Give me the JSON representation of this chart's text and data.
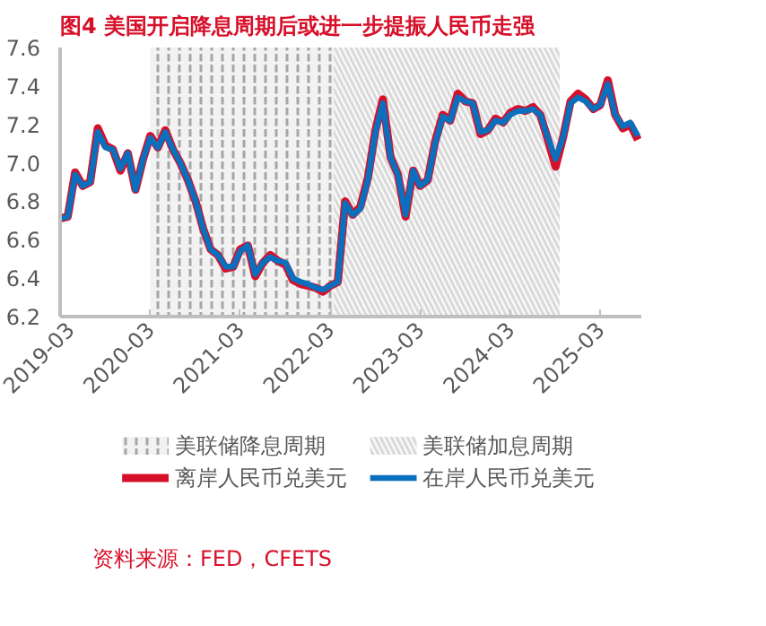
{
  "chart_data": {
    "type": "line",
    "title": "图4  美国开启降息周期后或进一步提振人民币走强",
    "x": [
      "2019-03",
      "2019-04",
      "2019-05",
      "2019-06",
      "2019-07",
      "2019-08",
      "2019-09",
      "2019-10",
      "2019-11",
      "2019-12",
      "2020-01",
      "2020-02",
      "2020-03",
      "2020-04",
      "2020-05",
      "2020-06",
      "2020-07",
      "2020-08",
      "2020-09",
      "2020-10",
      "2020-11",
      "2020-12",
      "2021-01",
      "2021-02",
      "2021-03",
      "2021-04",
      "2021-05",
      "2021-06",
      "2021-07",
      "2021-08",
      "2021-09",
      "2021-10",
      "2021-11",
      "2021-12",
      "2022-01",
      "2022-02",
      "2022-03",
      "2022-04",
      "2022-05",
      "2022-06",
      "2022-07",
      "2022-08",
      "2022-09",
      "2022-10",
      "2022-11",
      "2022-12",
      "2023-01",
      "2023-02",
      "2023-03",
      "2023-04",
      "2023-05",
      "2023-06",
      "2023-07",
      "2023-08",
      "2023-09",
      "2023-10",
      "2023-11",
      "2023-12",
      "2024-01",
      "2024-02",
      "2024-03",
      "2024-04",
      "2024-05",
      "2024-06",
      "2024-07",
      "2024-08",
      "2024-09",
      "2024-10",
      "2024-11",
      "2024-12",
      "2025-01",
      "2025-02",
      "2025-03",
      "2025-04",
      "2025-05",
      "2025-06",
      "2025-07",
      "2025-08"
    ],
    "series": [
      {
        "name": "离岸人民币兑美元",
        "color": "#d7102a",
        "values": [
          6.71,
          6.72,
          6.95,
          6.88,
          6.9,
          7.18,
          7.09,
          7.07,
          6.96,
          7.05,
          6.86,
          7.02,
          7.14,
          7.08,
          7.17,
          7.07,
          7.0,
          6.91,
          6.8,
          6.66,
          6.55,
          6.52,
          6.45,
          6.46,
          6.55,
          6.57,
          6.41,
          6.48,
          6.52,
          6.49,
          6.47,
          6.39,
          6.37,
          6.36,
          6.35,
          6.33,
          6.36,
          6.38,
          6.8,
          6.73,
          6.77,
          6.92,
          7.17,
          7.33,
          7.03,
          6.94,
          6.72,
          6.96,
          6.88,
          6.91,
          7.11,
          7.25,
          7.22,
          7.36,
          7.32,
          7.31,
          7.15,
          7.17,
          7.23,
          7.21,
          7.26,
          7.28,
          7.27,
          7.29,
          7.25,
          7.12,
          6.98,
          7.13,
          7.32,
          7.36,
          7.33,
          7.28,
          7.3,
          7.43,
          7.25,
          7.18,
          7.2,
          7.12
        ]
      },
      {
        "name": "在岸人民币兑美元",
        "color": "#0a6fbd",
        "values": [
          6.71,
          6.72,
          6.94,
          6.88,
          6.9,
          7.16,
          7.08,
          7.07,
          6.97,
          7.05,
          6.86,
          7.02,
          7.13,
          7.08,
          7.16,
          7.07,
          7.0,
          6.91,
          6.8,
          6.66,
          6.55,
          6.52,
          6.46,
          6.46,
          6.54,
          6.57,
          6.42,
          6.48,
          6.51,
          6.49,
          6.48,
          6.4,
          6.38,
          6.37,
          6.35,
          6.34,
          6.36,
          6.38,
          6.79,
          6.73,
          6.76,
          6.91,
          7.16,
          7.31,
          7.03,
          6.94,
          6.73,
          6.96,
          6.88,
          6.91,
          7.1,
          7.24,
          7.22,
          7.34,
          7.32,
          7.31,
          7.16,
          7.17,
          7.22,
          7.21,
          7.25,
          7.27,
          7.27,
          7.28,
          7.25,
          7.13,
          7.02,
          7.13,
          7.31,
          7.34,
          7.32,
          7.28,
          7.3,
          7.41,
          7.25,
          7.19,
          7.21,
          7.14
        ]
      }
    ],
    "xlim": [
      "2019-03",
      "2025-08-15"
    ],
    "xticks": [
      "2019-03",
      "2020-03",
      "2021-03",
      "2022-03",
      "2023-03",
      "2024-03",
      "2025-03"
    ],
    "ylim": [
      6.2,
      7.6
    ],
    "yticks": [
      6.2,
      6.4,
      6.6,
      6.8,
      {
        "value": 7,
        "label": "7.0"
      },
      7.2,
      7.4,
      7.6
    ],
    "bands": [
      {
        "axis": "x",
        "from": "2020-03",
        "to": "2022-03-16",
        "label": "美联储降息周期",
        "color": "#a6a6a6"
      },
      {
        "axis": "x",
        "from": "2022-03-16",
        "to": "2024-09-18",
        "label": "美联储加息周期",
        "color": "#d9d9d9"
      }
    ],
    "legend": "bottom",
    "grid": false,
    "marker": "none",
    "line_style": "solid",
    "annotations": [
      "资料来源：FED，CFETS"
    ]
  }
}
